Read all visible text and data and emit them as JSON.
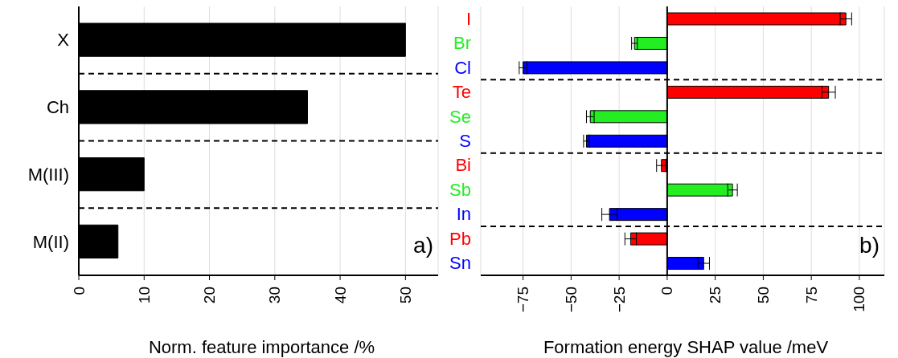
{
  "chart_data": [
    {
      "type": "bar",
      "orientation": "horizontal",
      "categories": [
        "X",
        "Ch",
        "M(III)",
        "M(II)"
      ],
      "values": [
        50,
        35,
        10,
        6
      ],
      "color": "#000000",
      "xlim": [
        0,
        55
      ],
      "xticks": [
        0,
        10,
        20,
        30,
        40,
        50
      ],
      "xlabel": "Norm. feature importance /%",
      "grid": "x",
      "annotations": [
        "a)"
      ],
      "ref_lines": [
        {
          "axis": "y",
          "value": "X",
          "line_style": "dashed"
        },
        {
          "axis": "y",
          "value": "Ch",
          "line_style": "dashed"
        },
        {
          "axis": "y",
          "value": "M(III)",
          "line_style": "dashed"
        }
      ]
    },
    {
      "type": "bar",
      "orientation": "horizontal",
      "categories": [
        "I",
        "Br",
        "Cl",
        "Te",
        "Se",
        "S",
        "Bi",
        "Sb",
        "In",
        "Pb",
        "Sn"
      ],
      "values": [
        93,
        -17,
        -75,
        84,
        -40,
        -42,
        -3,
        34,
        -30,
        -19,
        19
      ],
      "errors": [
        3,
        1.5,
        2,
        3.5,
        2,
        1.5,
        2.5,
        2.5,
        4,
        3,
        3
      ],
      "colors": [
        "#ff0000",
        "#22ee22",
        "#0000ff",
        "#ff0000",
        "#22ee22",
        "#0000ff",
        "#ff0000",
        "#22ee22",
        "#0000ff",
        "#ff0000",
        "#0000ff"
      ],
      "xlim": [
        -97,
        113
      ],
      "xticks": [
        {
          "value": -75,
          "label": "−75"
        },
        {
          "value": -50,
          "label": "−50"
        },
        {
          "value": -25,
          "label": "−25"
        },
        0,
        25,
        50,
        75,
        100
      ],
      "xlabel": "Formation energy SHAP value /meV",
      "grid": "x",
      "annotations": [
        "b)"
      ],
      "ref_lines": [
        {
          "axis": "x",
          "value": 0,
          "line_style": "solid"
        },
        {
          "axis": "y",
          "value": "Cl",
          "line_style": "dashed"
        },
        {
          "axis": "y",
          "value": "S",
          "line_style": "dashed"
        },
        {
          "axis": "y",
          "value": "In",
          "line_style": "dashed"
        }
      ]
    }
  ]
}
